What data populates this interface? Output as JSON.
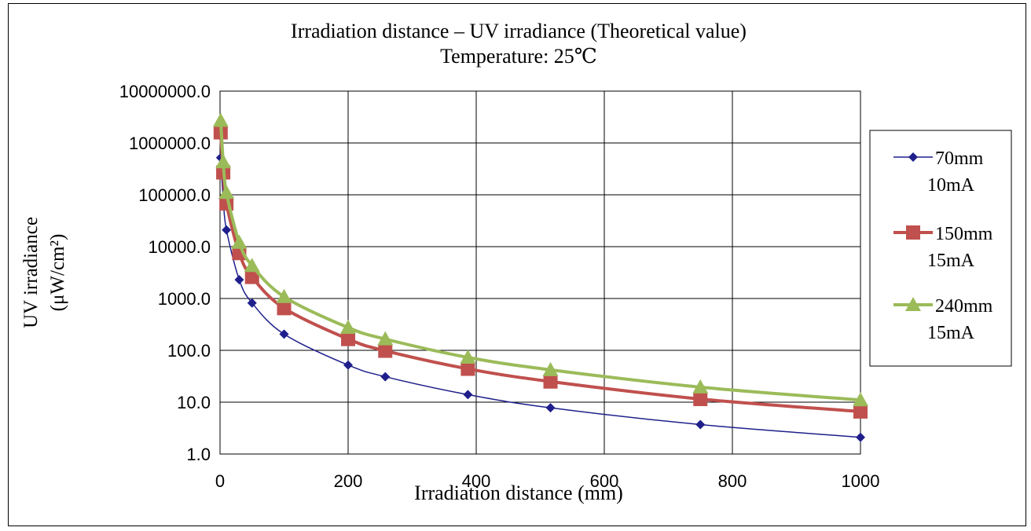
{
  "chart_data": {
    "type": "line",
    "title": "Irradiation distance – UV irradiance (Theoretical value)",
    "subtitle": "Temperature: 25℃",
    "xlabel": "Irradiation distance (mm)",
    "ylabel_line1": "UV irradiance",
    "ylabel_line2": "(μW/cm²)",
    "xlim": [
      0,
      1000
    ],
    "ylim": [
      1,
      10000000
    ],
    "yscale": "log",
    "grid": true,
    "legend_position": "right",
    "x_ticks": [
      {
        "value": 0,
        "label": "0"
      },
      {
        "value": 200,
        "label": "200"
      },
      {
        "value": 400,
        "label": "400"
      },
      {
        "value": 600,
        "label": "600"
      },
      {
        "value": 800,
        "label": "800"
      },
      {
        "value": 1000,
        "label": "1000"
      }
    ],
    "y_ticks": [
      {
        "value": 1,
        "label": "1.0"
      },
      {
        "value": 10,
        "label": "10.0"
      },
      {
        "value": 100,
        "label": "100.0"
      },
      {
        "value": 1000,
        "label": "1000.0"
      },
      {
        "value": 10000,
        "label": "10000.0"
      },
      {
        "value": 100000,
        "label": "100000.0"
      },
      {
        "value": 1000000,
        "label": "1000000.0"
      },
      {
        "value": 10000000,
        "label": "10000000.0"
      }
    ],
    "series": [
      {
        "name_line1": "70mm",
        "name_line2": "10mA",
        "color": "#1f1f8c",
        "marker": "diamond",
        "line_width": 1.5,
        "x": [
          1,
          5,
          10,
          30,
          50,
          100,
          200,
          258,
          387,
          516,
          750,
          1000
        ],
        "y": [
          520000,
          85000,
          21000,
          2300,
          820,
          205,
          52,
          31,
          14,
          7.8,
          3.7,
          2.1
        ]
      },
      {
        "name_line1": "150mm",
        "name_line2": "15mA",
        "color": "#c0504d",
        "marker": "square",
        "line_width": 4,
        "x": [
          1,
          5,
          10,
          30,
          50,
          100,
          200,
          258,
          387,
          516,
          750,
          1000
        ],
        "y": [
          1600000,
          270000,
          68000,
          7500,
          2600,
          650,
          165,
          98,
          44,
          25,
          11.5,
          6.6
        ]
      },
      {
        "name_line1": "240mm",
        "name_line2": "15mA",
        "color": "#9bbb59",
        "marker": "triangle",
        "line_width": 4,
        "x": [
          1,
          5,
          10,
          30,
          50,
          100,
          200,
          258,
          387,
          516,
          750,
          1000
        ],
        "y": [
          2700000,
          430000,
          110000,
          12000,
          4300,
          1080,
          275,
          165,
          73,
          42,
          19.5,
          11
        ]
      }
    ]
  }
}
